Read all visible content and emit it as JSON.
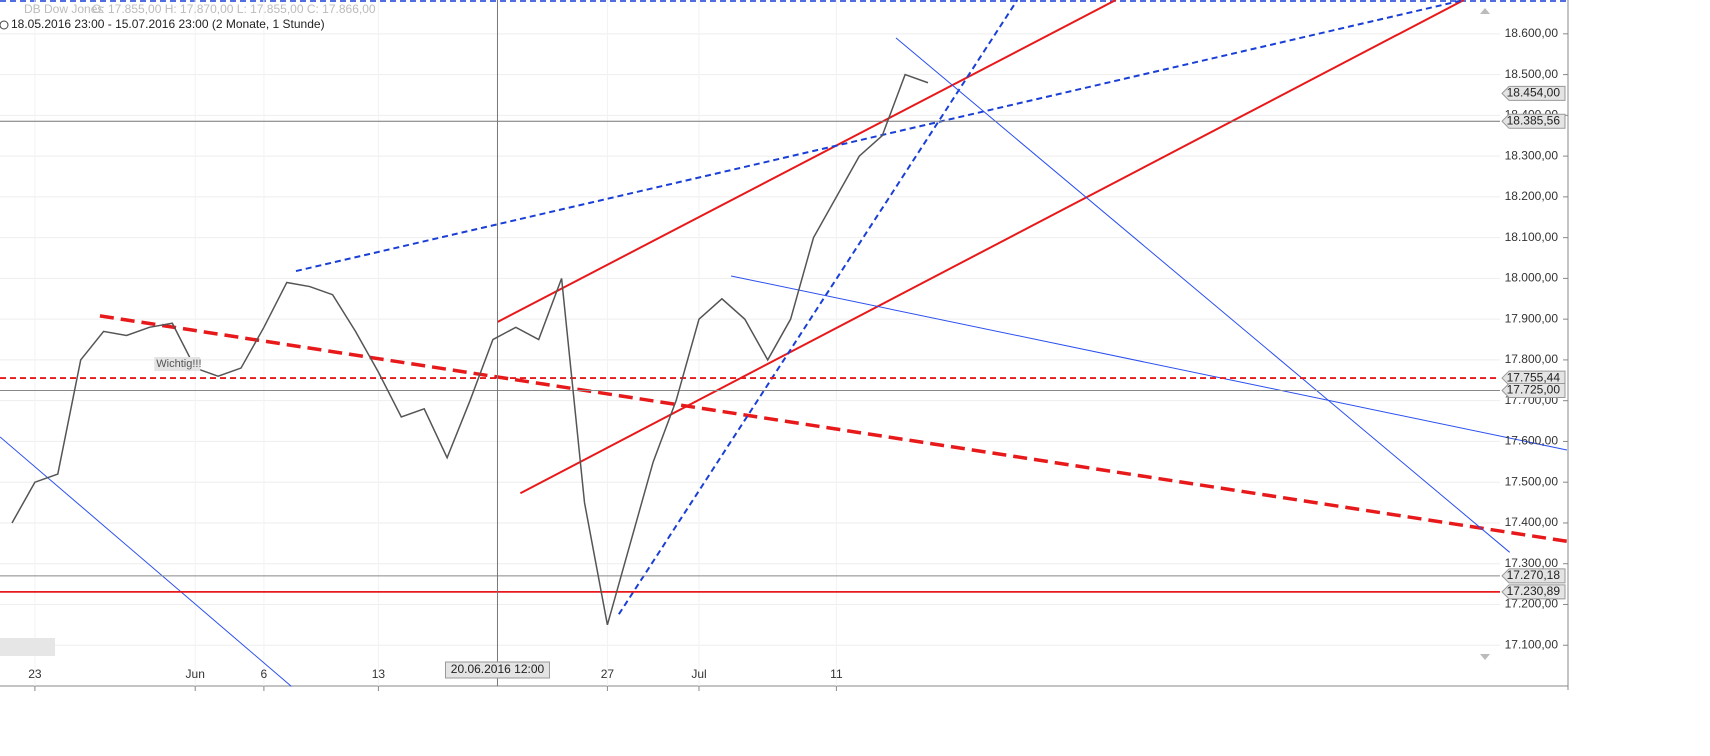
{
  "chart_data": {
    "type": "line",
    "title": "DB Dow Jones",
    "ohlc_text": "O: 17.855,00  H: 17.870,00  L: 17.855,00  C: 17.866,00",
    "subtitle": "18.05.2016 23:00 - 15.07.2016 23:00 (2 Monate, 1 Stunde)",
    "categories": [
      null,
      "23",
      null,
      null,
      null,
      null,
      null,
      null,
      "Jun",
      null,
      null,
      "6",
      null,
      null,
      null,
      null,
      "13",
      null,
      null,
      null,
      null,
      null,
      null,
      null,
      null,
      null,
      "27",
      null,
      null,
      null,
      "Jul",
      null,
      null,
      null,
      null,
      null,
      "11",
      null,
      null,
      null,
      null
    ],
    "series": [
      {
        "name": "DB Dow Jones",
        "color": "#555555",
        "values": [
          17400,
          17500,
          17520,
          17800,
          17870,
          17860,
          17880,
          17890,
          17780,
          17760,
          17780,
          17880,
          17990,
          17980,
          17960,
          17870,
          17770,
          17660,
          17680,
          17560,
          17700,
          17850,
          17880,
          17850,
          18000,
          17450,
          17150,
          17350,
          17550,
          17700,
          17900,
          17950,
          17900,
          17800,
          17900,
          18100,
          18200,
          18300,
          18350,
          18500,
          18480
        ]
      }
    ],
    "ylim": [
      17000,
      18683
    ],
    "yticks": [
      {
        "value": 17100,
        "label": "17.100,00"
      },
      {
        "value": 17200,
        "label": "17.200,00"
      },
      {
        "value": 17300,
        "label": "17.300,00"
      },
      {
        "value": 17400,
        "label": "17.400,00"
      },
      {
        "value": 17500,
        "label": "17.500,00"
      },
      {
        "value": 17600,
        "label": "17.600,00"
      },
      {
        "value": 17700,
        "label": "17.700,00"
      },
      {
        "value": 17800,
        "label": "17.800,00"
      },
      {
        "value": 17900,
        "label": "17.900,00"
      },
      {
        "value": 18000,
        "label": "18.000,00"
      },
      {
        "value": 18100,
        "label": "18.100,00"
      },
      {
        "value": 18200,
        "label": "18.200,00"
      },
      {
        "value": 18300,
        "label": "18.300,00"
      },
      {
        "value": 18400,
        "label": "18.400,00"
      },
      {
        "value": 18500,
        "label": "18.500,00"
      },
      {
        "value": 18600,
        "label": "18.600,00"
      }
    ],
    "grid": true,
    "price_lines": [
      {
        "value": 18454,
        "label": "18.454,00",
        "color": "#999999",
        "style": "none"
      },
      {
        "value": 18385.56,
        "label": "18.385,56",
        "color": "#777777",
        "style": "solid"
      },
      {
        "value": 17755.44,
        "label": "17.755,44",
        "color": "#e8191a",
        "style": "dashed"
      },
      {
        "value": 17725,
        "label": "17.725,00",
        "color": "#888888",
        "style": "solid"
      },
      {
        "value": 17270.18,
        "label": "17.270,18",
        "color": "#888888",
        "style": "solid"
      },
      {
        "value": 17230.89,
        "label": "17.230,89",
        "color": "#e8191a",
        "style": "solid"
      }
    ],
    "trendlines": [
      {
        "color": "#e8191a",
        "style": "thickdash",
        "from": [
          3.84,
          17908
        ],
        "to": [
          67.9,
          17355
        ]
      },
      {
        "color": "#e8191a",
        "style": "solid",
        "from": [
          21.2,
          17893
        ],
        "to": [
          48.2,
          18683
        ]
      },
      {
        "color": "#e8191a",
        "style": "solid",
        "from": [
          22.2,
          17473
        ],
        "to": [
          63.4,
          18683
        ]
      },
      {
        "color": "#1a3fd6",
        "style": "dashed",
        "from": [
          26.5,
          17176
        ],
        "to": [
          43.9,
          18683
        ]
      },
      {
        "color": "#1a3fd6",
        "style": "dashed",
        "from": [
          12.4,
          18018
        ],
        "to": [
          63.4,
          18683
        ]
      },
      {
        "color": "#2a4ff0",
        "style": "thin",
        "from": [
          38.6,
          18590
        ],
        "to": [
          65.4,
          17328
        ]
      },
      {
        "color": "#2a4ff0",
        "style": "thin",
        "from": [
          31.4,
          18006
        ],
        "to": [
          67.9,
          17579
        ]
      },
      {
        "color": "#2a4ff0",
        "style": "thin",
        "from": [
          -0.52,
          17611
        ],
        "to": [
          12.2,
          16999
        ]
      }
    ],
    "annotation": {
      "text": "Wichtig!!!",
      "x": 6.3,
      "y": 17790
    },
    "crosshair": {
      "x": 21.2,
      "label": "20.06.2016 12:00"
    }
  }
}
